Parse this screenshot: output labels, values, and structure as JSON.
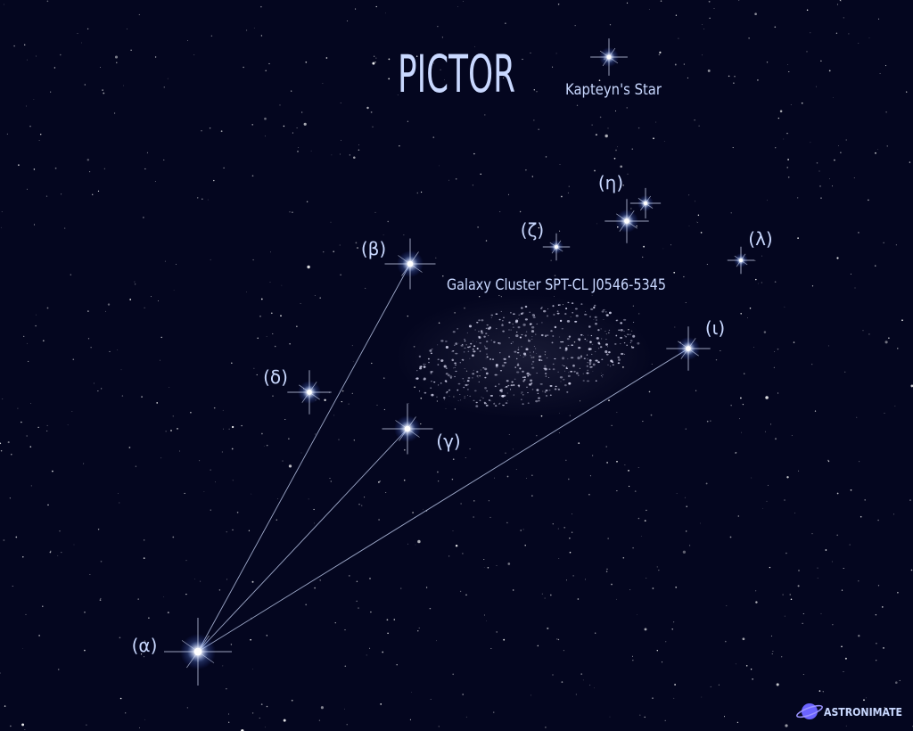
{
  "title": "PICTOR",
  "annotations": {
    "kapteyn": "Kapteyn's Star",
    "cluster": "Galaxy Cluster SPT-CL J0546-5345"
  },
  "stars": [
    {
      "id": "alpha",
      "label": "(α)"
    },
    {
      "id": "beta",
      "label": "(β)"
    },
    {
      "id": "gamma",
      "label": "(γ)"
    },
    {
      "id": "delta",
      "label": "(δ)"
    },
    {
      "id": "zeta",
      "label": "(ζ)"
    },
    {
      "id": "eta",
      "label": "(η)"
    },
    {
      "id": "iota",
      "label": "(ι)"
    },
    {
      "id": "lambda",
      "label": "(λ)"
    }
  ],
  "logo": {
    "text": "ASTRONIMATE",
    "icon": "planet-icon"
  },
  "colors": {
    "background": "#04061f",
    "label": "#c9d8ff",
    "line": "#b9c6e8",
    "star": "#ffffff",
    "glow": "#7fa6ff",
    "logo_planet": "#6b63ff"
  }
}
